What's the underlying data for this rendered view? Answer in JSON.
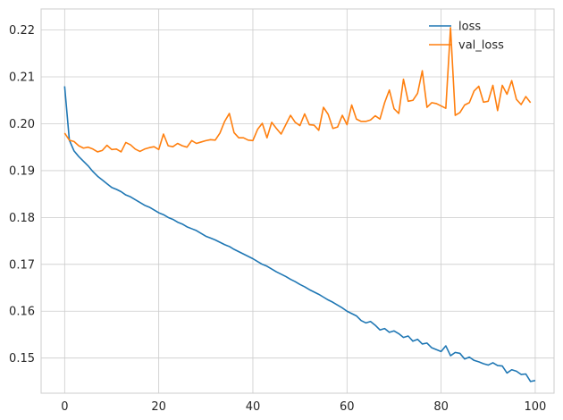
{
  "chart_data": {
    "type": "line",
    "title": "",
    "xlabel": "",
    "ylabel": "",
    "xlim": [
      -5,
      104
    ],
    "ylim": [
      0.1425,
      0.2245
    ],
    "xticks": [
      0,
      20,
      40,
      60,
      80,
      100
    ],
    "yticks": [
      0.15,
      0.16,
      0.17,
      0.18,
      0.19,
      0.2,
      0.21,
      0.22
    ],
    "ytick_labels": [
      "0.15",
      "0.16",
      "0.17",
      "0.18",
      "0.19",
      "0.20",
      "0.21",
      "0.22"
    ],
    "grid": true,
    "legend_position": "top-right",
    "series": [
      {
        "name": "loss",
        "color": "#1f77b4",
        "values": [
          0.208,
          0.1965,
          0.1942,
          0.193,
          0.192,
          0.191,
          0.1898,
          0.1888,
          0.188,
          0.1872,
          0.1864,
          0.186,
          0.1855,
          0.1848,
          0.1844,
          0.1838,
          0.1832,
          0.1826,
          0.1822,
          0.1816,
          0.181,
          0.1806,
          0.18,
          0.1796,
          0.179,
          0.1786,
          0.178,
          0.1776,
          0.1772,
          0.1766,
          0.176,
          0.1756,
          0.1752,
          0.1747,
          0.1742,
          0.1738,
          0.1732,
          0.1727,
          0.1722,
          0.1717,
          0.1712,
          0.1706,
          0.17,
          0.1696,
          0.169,
          0.1684,
          0.1679,
          0.1674,
          0.1668,
          0.1663,
          0.1657,
          0.1652,
          0.1646,
          0.1641,
          0.1636,
          0.163,
          0.1624,
          0.1619,
          0.1613,
          0.1607,
          0.16,
          0.1595,
          0.159,
          0.158,
          0.1575,
          0.1578,
          0.157,
          0.156,
          0.1563,
          0.1555,
          0.1558,
          0.1552,
          0.1544,
          0.1547,
          0.1536,
          0.154,
          0.153,
          0.1532,
          0.1522,
          0.1518,
          0.1514,
          0.1526,
          0.1505,
          0.1512,
          0.151,
          0.1498,
          0.1502,
          0.1495,
          0.1492,
          0.1488,
          0.1485,
          0.149,
          0.1484,
          0.1483,
          0.1468,
          0.1475,
          0.1472,
          0.1465,
          0.1466,
          0.145,
          0.1452
        ]
      },
      {
        "name": "val_loss",
        "color": "#ff7f0e",
        "values": [
          0.198,
          0.1965,
          0.1962,
          0.1953,
          0.1948,
          0.195,
          0.1946,
          0.194,
          0.1943,
          0.1954,
          0.1945,
          0.1946,
          0.194,
          0.196,
          0.1955,
          0.1946,
          0.1941,
          0.1946,
          0.1949,
          0.1951,
          0.1945,
          0.1978,
          0.1953,
          0.1951,
          0.1958,
          0.1953,
          0.195,
          0.1964,
          0.1958,
          0.1961,
          0.1964,
          0.1966,
          0.1965,
          0.198,
          0.2005,
          0.2022,
          0.1981,
          0.197,
          0.197,
          0.1965,
          0.1964,
          0.1988,
          0.2001,
          0.197,
          0.2003,
          0.199,
          0.1978,
          0.1998,
          0.2018,
          0.2003,
          0.1996,
          0.2021,
          0.1998,
          0.1997,
          0.1986,
          0.2035,
          0.202,
          0.199,
          0.1993,
          0.2018,
          0.1998,
          0.204,
          0.201,
          0.2005,
          0.2005,
          0.2008,
          0.2017,
          0.201,
          0.2045,
          0.2072,
          0.2032,
          0.2022,
          0.2095,
          0.2048,
          0.205,
          0.2065,
          0.2113,
          0.2035,
          0.2045,
          0.2043,
          0.2038,
          0.2033,
          0.2205,
          0.2018,
          0.2024,
          0.204,
          0.2045,
          0.207,
          0.208,
          0.2046,
          0.2048,
          0.2082,
          0.2028,
          0.2082,
          0.2063,
          0.2092,
          0.2052,
          0.2041,
          0.2058,
          0.2045
        ]
      }
    ]
  }
}
